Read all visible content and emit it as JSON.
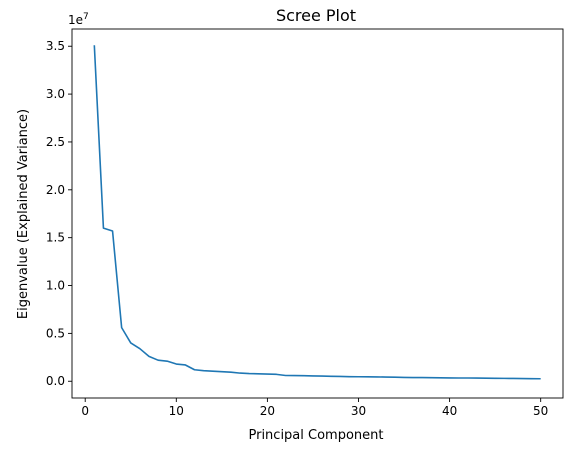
{
  "chart_data": {
    "type": "line",
    "title": "Scree Plot",
    "xlabel": "Principal Component",
    "ylabel": "Eigenvalue (Explained Variance)",
    "y_offset_label": "1e7",
    "xlim": [
      -1.45,
      52.45
    ],
    "ylim": [
      -0.175,
      3.68
    ],
    "x_ticks": [
      0,
      10,
      20,
      30,
      40,
      50
    ],
    "x_tick_labels": [
      "0",
      "10",
      "20",
      "30",
      "40",
      "50"
    ],
    "y_ticks": [
      0,
      0.5,
      1.0,
      1.5,
      2.0,
      2.5,
      3.0,
      3.5
    ],
    "y_tick_labels": [
      "0.0",
      "0.5",
      "1.0",
      "1.5",
      "2.0",
      "2.5",
      "3.0",
      "3.5"
    ],
    "grid": false,
    "line_color": "#1f77b4",
    "series": [
      {
        "x": [
          1,
          2,
          3,
          4,
          5,
          6,
          7,
          8,
          9,
          10,
          11,
          12,
          13,
          14,
          15,
          16,
          17,
          18,
          19,
          20,
          21,
          22,
          23,
          24,
          25,
          26,
          27,
          28,
          29,
          30,
          31,
          32,
          33,
          34,
          35,
          36,
          37,
          38,
          39,
          40,
          41,
          42,
          43,
          44,
          45,
          46,
          47,
          48,
          49,
          50
        ],
        "values": [
          3.51,
          1.6,
          1.57,
          0.56,
          0.4,
          0.34,
          0.26,
          0.22,
          0.21,
          0.18,
          0.17,
          0.12,
          0.11,
          0.105,
          0.1,
          0.095,
          0.085,
          0.08,
          0.078,
          0.075,
          0.072,
          0.06,
          0.059,
          0.058,
          0.056,
          0.054,
          0.052,
          0.05,
          0.048,
          0.047,
          0.046,
          0.045,
          0.044,
          0.042,
          0.04,
          0.039,
          0.038,
          0.037,
          0.036,
          0.035,
          0.034,
          0.034,
          0.033,
          0.032,
          0.031,
          0.03,
          0.029,
          0.028,
          0.027,
          0.026
        ]
      }
    ]
  }
}
